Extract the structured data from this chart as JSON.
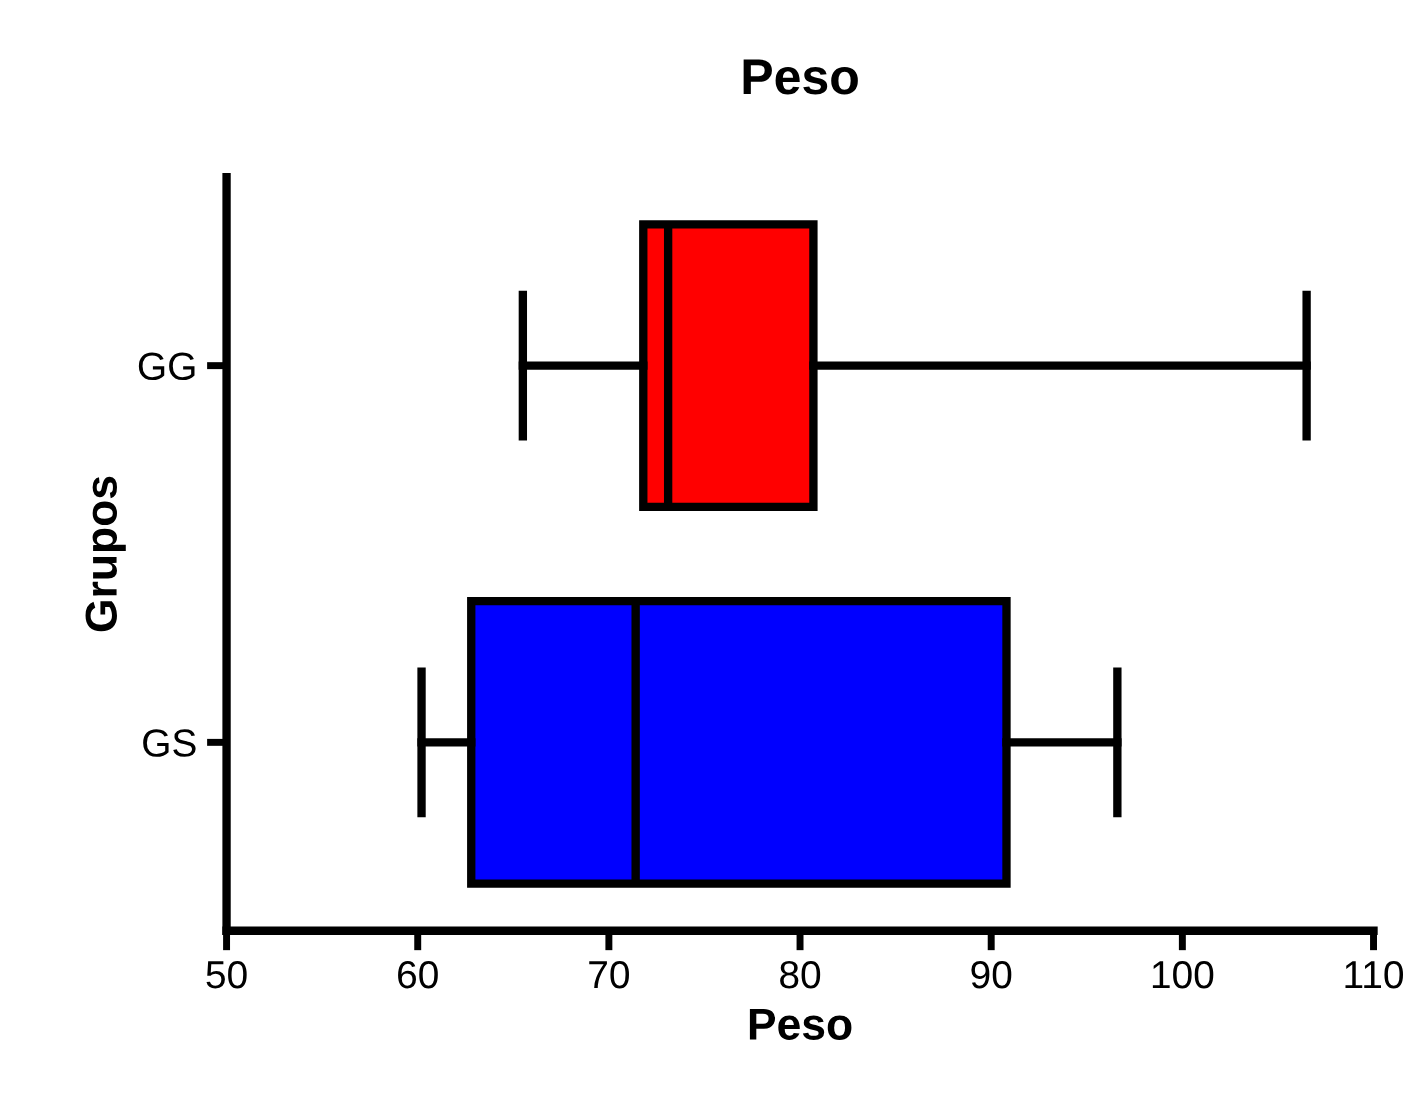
{
  "chart_data": {
    "type": "box",
    "title": "Peso",
    "xlabel": "Peso",
    "ylabel": "Grupos",
    "orientation": "horizontal",
    "categories": [
      "GG",
      "GS"
    ],
    "boxes": [
      {
        "low": 65.5,
        "q1": 71.8,
        "median": 73.1,
        "q3": 80.7,
        "high": 106.5
      },
      {
        "low": 60.2,
        "q1": 62.8,
        "median": 71.4,
        "q3": 90.8,
        "high": 96.6
      }
    ],
    "colors": [
      "#ff0000",
      "#0000ff"
    ],
    "xlim": [
      50,
      110
    ],
    "xticks": [
      50,
      60,
      70,
      80,
      90,
      100,
      110
    ],
    "grid": false
  }
}
